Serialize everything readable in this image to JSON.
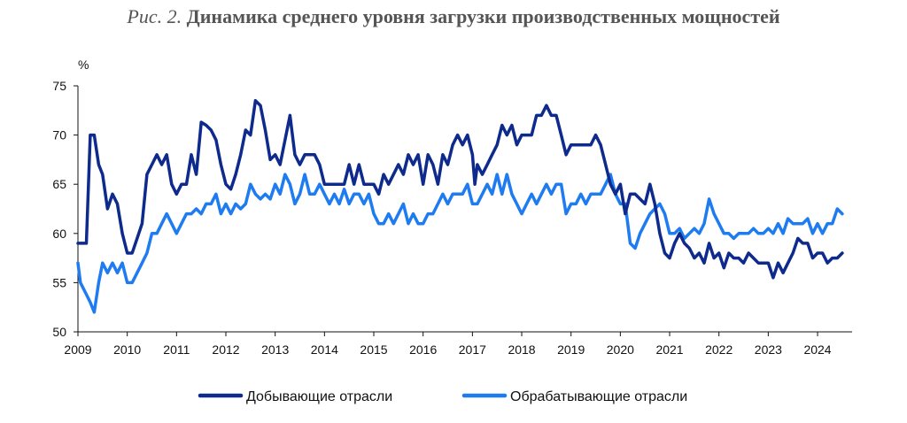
{
  "title": {
    "prefix": "Рис. 2.",
    "main": "Динамика среднего уровня загрузки производственных мощностей"
  },
  "chart_data": {
    "type": "line",
    "ylabel": "%",
    "ylim": [
      50,
      75
    ],
    "yticks": [
      50,
      55,
      60,
      65,
      70,
      75
    ],
    "xlim": [
      2009,
      2024.7
    ],
    "xticks": [
      "2009",
      "2010",
      "2011",
      "2012",
      "2013",
      "2014",
      "2015",
      "2016",
      "2017",
      "2018",
      "2019",
      "2020",
      "2021",
      "2022",
      "2023",
      "2024"
    ],
    "grid": false,
    "legend_position": "bottom",
    "series": [
      {
        "name": "Добывающие отрасли",
        "color": "#0d2a8c",
        "points": [
          [
            2009.0,
            59
          ],
          [
            2009.17,
            59
          ],
          [
            2009.25,
            70
          ],
          [
            2009.33,
            70
          ],
          [
            2009.42,
            67
          ],
          [
            2009.5,
            66
          ],
          [
            2009.6,
            62.5
          ],
          [
            2009.7,
            64
          ],
          [
            2009.8,
            63
          ],
          [
            2009.9,
            60
          ],
          [
            2010.0,
            58
          ],
          [
            2010.1,
            58
          ],
          [
            2010.2,
            59.5
          ],
          [
            2010.3,
            61
          ],
          [
            2010.4,
            66
          ],
          [
            2010.5,
            67
          ],
          [
            2010.6,
            68
          ],
          [
            2010.7,
            67
          ],
          [
            2010.8,
            68
          ],
          [
            2010.9,
            65
          ],
          [
            2011.0,
            64
          ],
          [
            2011.1,
            65
          ],
          [
            2011.2,
            65
          ],
          [
            2011.3,
            68
          ],
          [
            2011.4,
            66
          ],
          [
            2011.5,
            71.3
          ],
          [
            2011.6,
            71
          ],
          [
            2011.7,
            70.5
          ],
          [
            2011.8,
            69.5
          ],
          [
            2011.9,
            67
          ],
          [
            2012.0,
            65
          ],
          [
            2012.1,
            64.5
          ],
          [
            2012.2,
            66
          ],
          [
            2012.3,
            68
          ],
          [
            2012.4,
            70.5
          ],
          [
            2012.5,
            70
          ],
          [
            2012.6,
            73.5
          ],
          [
            2012.7,
            73
          ],
          [
            2012.8,
            70.5
          ],
          [
            2012.9,
            67.5
          ],
          [
            2013.0,
            68
          ],
          [
            2013.1,
            67
          ],
          [
            2013.2,
            69.5
          ],
          [
            2013.3,
            72
          ],
          [
            2013.4,
            68
          ],
          [
            2013.5,
            67
          ],
          [
            2013.6,
            68
          ],
          [
            2013.7,
            68
          ],
          [
            2013.8,
            68
          ],
          [
            2013.9,
            67
          ],
          [
            2014.0,
            65
          ],
          [
            2014.2,
            65
          ],
          [
            2014.4,
            65
          ],
          [
            2014.5,
            67
          ],
          [
            2014.6,
            65
          ],
          [
            2014.7,
            67
          ],
          [
            2014.8,
            65
          ],
          [
            2014.9,
            65
          ],
          [
            2015.0,
            65
          ],
          [
            2015.1,
            64
          ],
          [
            2015.2,
            66
          ],
          [
            2015.3,
            65
          ],
          [
            2015.4,
            66
          ],
          [
            2015.5,
            67
          ],
          [
            2015.6,
            66
          ],
          [
            2015.7,
            68
          ],
          [
            2015.8,
            67
          ],
          [
            2015.9,
            68
          ],
          [
            2016.0,
            65
          ],
          [
            2016.1,
            68
          ],
          [
            2016.2,
            67
          ],
          [
            2016.3,
            65
          ],
          [
            2016.4,
            68
          ],
          [
            2016.5,
            67
          ],
          [
            2016.6,
            69
          ],
          [
            2016.7,
            70
          ],
          [
            2016.8,
            69
          ],
          [
            2016.9,
            70
          ],
          [
            2017.0,
            68
          ],
          [
            2017.05,
            65
          ],
          [
            2017.1,
            67
          ],
          [
            2017.2,
            66
          ],
          [
            2017.3,
            67
          ],
          [
            2017.4,
            68
          ],
          [
            2017.5,
            69
          ],
          [
            2017.6,
            71
          ],
          [
            2017.7,
            70
          ],
          [
            2017.8,
            71
          ],
          [
            2017.9,
            69
          ],
          [
            2018.0,
            70
          ],
          [
            2018.1,
            70
          ],
          [
            2018.2,
            70
          ],
          [
            2018.3,
            72
          ],
          [
            2018.4,
            72
          ],
          [
            2018.5,
            73
          ],
          [
            2018.6,
            72
          ],
          [
            2018.7,
            72
          ],
          [
            2018.8,
            70
          ],
          [
            2018.9,
            68
          ],
          [
            2019.0,
            69
          ],
          [
            2019.2,
            69
          ],
          [
            2019.4,
            69
          ],
          [
            2019.5,
            70
          ],
          [
            2019.6,
            69
          ],
          [
            2019.7,
            67
          ],
          [
            2019.8,
            65
          ],
          [
            2019.9,
            64
          ],
          [
            2020.0,
            65
          ],
          [
            2020.1,
            62
          ],
          [
            2020.2,
            64
          ],
          [
            2020.3,
            64
          ],
          [
            2020.4,
            63.5
          ],
          [
            2020.5,
            63
          ],
          [
            2020.6,
            65
          ],
          [
            2020.7,
            63
          ],
          [
            2020.8,
            60
          ],
          [
            2020.9,
            58
          ],
          [
            2021.0,
            57.5
          ],
          [
            2021.1,
            59
          ],
          [
            2021.2,
            60
          ],
          [
            2021.3,
            59
          ],
          [
            2021.4,
            58.5
          ],
          [
            2021.5,
            57.5
          ],
          [
            2021.6,
            58
          ],
          [
            2021.7,
            57
          ],
          [
            2021.8,
            59
          ],
          [
            2021.9,
            57.5
          ],
          [
            2022.0,
            58
          ],
          [
            2022.1,
            56.5
          ],
          [
            2022.2,
            58
          ],
          [
            2022.3,
            57.5
          ],
          [
            2022.4,
            57.5
          ],
          [
            2022.5,
            57
          ],
          [
            2022.6,
            58
          ],
          [
            2022.7,
            57.5
          ],
          [
            2022.8,
            57
          ],
          [
            2022.9,
            57
          ],
          [
            2023.0,
            57
          ],
          [
            2023.1,
            55.5
          ],
          [
            2023.2,
            57
          ],
          [
            2023.3,
            56
          ],
          [
            2023.4,
            57
          ],
          [
            2023.5,
            58
          ],
          [
            2023.6,
            59.5
          ],
          [
            2023.7,
            59
          ],
          [
            2023.8,
            59
          ],
          [
            2023.9,
            57.5
          ],
          [
            2024.0,
            58
          ],
          [
            2024.1,
            58
          ],
          [
            2024.2,
            57
          ],
          [
            2024.3,
            57.5
          ],
          [
            2024.4,
            57.5
          ],
          [
            2024.5,
            58
          ]
        ]
      },
      {
        "name": "Обрабатывающие отрасли",
        "color": "#1e7cf0",
        "points": [
          [
            2009.0,
            57
          ],
          [
            2009.05,
            55
          ],
          [
            2009.15,
            54
          ],
          [
            2009.25,
            53
          ],
          [
            2009.33,
            52
          ],
          [
            2009.42,
            55
          ],
          [
            2009.5,
            57
          ],
          [
            2009.6,
            56
          ],
          [
            2009.7,
            57
          ],
          [
            2009.8,
            56
          ],
          [
            2009.9,
            57
          ],
          [
            2010.0,
            55
          ],
          [
            2010.1,
            55
          ],
          [
            2010.2,
            56
          ],
          [
            2010.3,
            57
          ],
          [
            2010.4,
            58
          ],
          [
            2010.5,
            60
          ],
          [
            2010.6,
            60
          ],
          [
            2010.7,
            61
          ],
          [
            2010.8,
            62
          ],
          [
            2010.9,
            61
          ],
          [
            2011.0,
            60
          ],
          [
            2011.1,
            61
          ],
          [
            2011.2,
            62
          ],
          [
            2011.3,
            62
          ],
          [
            2011.4,
            62.5
          ],
          [
            2011.5,
            62
          ],
          [
            2011.6,
            63
          ],
          [
            2011.7,
            63
          ],
          [
            2011.8,
            64
          ],
          [
            2011.9,
            62
          ],
          [
            2012.0,
            63
          ],
          [
            2012.1,
            62
          ],
          [
            2012.2,
            63
          ],
          [
            2012.3,
            62.5
          ],
          [
            2012.4,
            63
          ],
          [
            2012.5,
            65
          ],
          [
            2012.6,
            64
          ],
          [
            2012.7,
            63.5
          ],
          [
            2012.8,
            64
          ],
          [
            2012.9,
            63.5
          ],
          [
            2013.0,
            65
          ],
          [
            2013.1,
            64
          ],
          [
            2013.2,
            66
          ],
          [
            2013.3,
            65
          ],
          [
            2013.4,
            63
          ],
          [
            2013.5,
            64
          ],
          [
            2013.6,
            66
          ],
          [
            2013.7,
            64
          ],
          [
            2013.8,
            64
          ],
          [
            2013.9,
            65
          ],
          [
            2014.0,
            64
          ],
          [
            2014.1,
            63
          ],
          [
            2014.2,
            64
          ],
          [
            2014.3,
            63
          ],
          [
            2014.4,
            64.5
          ],
          [
            2014.5,
            63
          ],
          [
            2014.6,
            64
          ],
          [
            2014.7,
            64
          ],
          [
            2014.8,
            63
          ],
          [
            2014.9,
            64
          ],
          [
            2015.0,
            62
          ],
          [
            2015.1,
            61
          ],
          [
            2015.2,
            61
          ],
          [
            2015.3,
            62
          ],
          [
            2015.4,
            61
          ],
          [
            2015.5,
            62
          ],
          [
            2015.6,
            63
          ],
          [
            2015.7,
            61
          ],
          [
            2015.8,
            62
          ],
          [
            2015.9,
            61
          ],
          [
            2016.0,
            61
          ],
          [
            2016.1,
            62
          ],
          [
            2016.2,
            62
          ],
          [
            2016.3,
            63
          ],
          [
            2016.4,
            64
          ],
          [
            2016.5,
            63
          ],
          [
            2016.6,
            64
          ],
          [
            2016.7,
            64
          ],
          [
            2016.8,
            64
          ],
          [
            2016.9,
            65
          ],
          [
            2017.0,
            63
          ],
          [
            2017.1,
            63
          ],
          [
            2017.2,
            64
          ],
          [
            2017.3,
            65
          ],
          [
            2017.4,
            64
          ],
          [
            2017.5,
            66
          ],
          [
            2017.6,
            64
          ],
          [
            2017.7,
            66
          ],
          [
            2017.8,
            64
          ],
          [
            2017.9,
            63
          ],
          [
            2018.0,
            62
          ],
          [
            2018.1,
            63
          ],
          [
            2018.2,
            64
          ],
          [
            2018.3,
            63
          ],
          [
            2018.4,
            64
          ],
          [
            2018.5,
            65
          ],
          [
            2018.6,
            64
          ],
          [
            2018.7,
            65
          ],
          [
            2018.8,
            65
          ],
          [
            2018.9,
            62
          ],
          [
            2019.0,
            63
          ],
          [
            2019.1,
            63
          ],
          [
            2019.2,
            64
          ],
          [
            2019.3,
            63
          ],
          [
            2019.4,
            64
          ],
          [
            2019.5,
            64
          ],
          [
            2019.6,
            64
          ],
          [
            2019.7,
            65
          ],
          [
            2019.8,
            66
          ],
          [
            2019.9,
            64
          ],
          [
            2020.0,
            63
          ],
          [
            2020.1,
            63
          ],
          [
            2020.2,
            59
          ],
          [
            2020.3,
            58.5
          ],
          [
            2020.4,
            60
          ],
          [
            2020.5,
            61
          ],
          [
            2020.6,
            62
          ],
          [
            2020.7,
            62.5
          ],
          [
            2020.8,
            63
          ],
          [
            2020.9,
            62
          ],
          [
            2021.0,
            60
          ],
          [
            2021.1,
            60
          ],
          [
            2021.2,
            60.5
          ],
          [
            2021.3,
            59.5
          ],
          [
            2021.4,
            60
          ],
          [
            2021.5,
            60.5
          ],
          [
            2021.6,
            60
          ],
          [
            2021.7,
            61
          ],
          [
            2021.8,
            63.5
          ],
          [
            2021.9,
            62
          ],
          [
            2022.0,
            61
          ],
          [
            2022.1,
            60
          ],
          [
            2022.2,
            60
          ],
          [
            2022.3,
            59.5
          ],
          [
            2022.4,
            60
          ],
          [
            2022.5,
            60
          ],
          [
            2022.6,
            60
          ],
          [
            2022.7,
            60.5
          ],
          [
            2022.8,
            60
          ],
          [
            2022.9,
            60
          ],
          [
            2023.0,
            60.5
          ],
          [
            2023.1,
            60
          ],
          [
            2023.2,
            61
          ],
          [
            2023.3,
            60
          ],
          [
            2023.4,
            61.5
          ],
          [
            2023.5,
            61
          ],
          [
            2023.6,
            61
          ],
          [
            2023.7,
            61
          ],
          [
            2023.8,
            61.5
          ],
          [
            2023.9,
            60
          ],
          [
            2024.0,
            61
          ],
          [
            2024.1,
            60
          ],
          [
            2024.2,
            61
          ],
          [
            2024.3,
            61
          ],
          [
            2024.4,
            62.5
          ],
          [
            2024.5,
            62
          ]
        ]
      }
    ]
  }
}
